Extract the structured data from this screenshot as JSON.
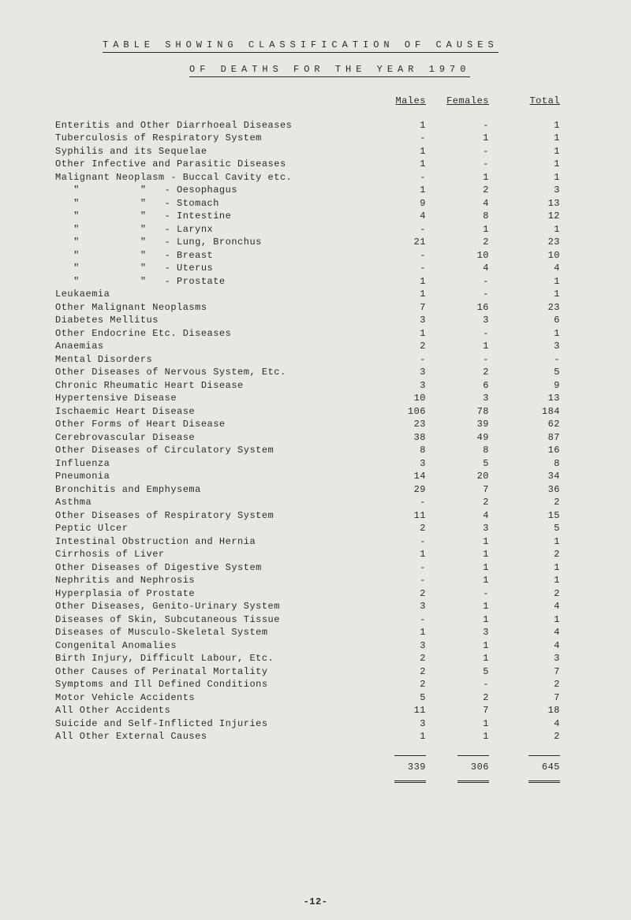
{
  "title1": "TABLE SHOWING CLASSIFICATION OF CAUSES",
  "title2": "OF DEATHS FOR THE YEAR 1970",
  "headers": {
    "c1": "Males",
    "c2": "Females",
    "c3": "Total"
  },
  "rows": [
    {
      "label": "Enteritis and Other Diarrhoeal Diseases",
      "m": "1",
      "f": "-",
      "t": "1"
    },
    {
      "label": "Tuberculosis of Respiratory System",
      "m": "-",
      "f": "1",
      "t": "1"
    },
    {
      "label": "Syphilis and its Sequelae",
      "m": "1",
      "f": "-",
      "t": "1"
    },
    {
      "label": "Other Infective and Parasitic Diseases",
      "m": "1",
      "f": "-",
      "t": "1"
    },
    {
      "label": "Malignant Neoplasm - Buccal Cavity etc.",
      "m": "-",
      "f": "1",
      "t": "1"
    },
    {
      "label": "   \"          \"   - Oesophagus",
      "m": "1",
      "f": "2",
      "t": "3"
    },
    {
      "label": "   \"          \"   - Stomach",
      "m": "9",
      "f": "4",
      "t": "13"
    },
    {
      "label": "   \"          \"   - Intestine",
      "m": "4",
      "f": "8",
      "t": "12"
    },
    {
      "label": "   \"          \"   - Larynx",
      "m": "-",
      "f": "1",
      "t": "1"
    },
    {
      "label": "   \"          \"   - Lung, Bronchus",
      "m": "21",
      "f": "2",
      "t": "23"
    },
    {
      "label": "   \"          \"   - Breast",
      "m": "-",
      "f": "10",
      "t": "10"
    },
    {
      "label": "   \"          \"   - Uterus",
      "m": "-",
      "f": "4",
      "t": "4"
    },
    {
      "label": "   \"          \"   - Prostate",
      "m": "1",
      "f": "-",
      "t": "1"
    },
    {
      "label": "Leukaemia",
      "m": "1",
      "f": "-",
      "t": "1"
    },
    {
      "label": "Other Malignant Neoplasms",
      "m": "7",
      "f": "16",
      "t": "23"
    },
    {
      "label": "Diabetes Mellitus",
      "m": "3",
      "f": "3",
      "t": "6"
    },
    {
      "label": "Other Endocrine Etc. Diseases",
      "m": "1",
      "f": "-",
      "t": "1"
    },
    {
      "label": "Anaemias",
      "m": "2",
      "f": "1",
      "t": "3"
    },
    {
      "label": "Mental Disorders",
      "m": "-",
      "f": "-",
      "t": "-"
    },
    {
      "label": "Other Diseases of Nervous System, Etc.",
      "m": "3",
      "f": "2",
      "t": "5"
    },
    {
      "label": "Chronic Rheumatic Heart Disease",
      "m": "3",
      "f": "6",
      "t": "9"
    },
    {
      "label": "Hypertensive Disease",
      "m": "10",
      "f": "3",
      "t": "13"
    },
    {
      "label": "Ischaemic Heart Disease",
      "m": "106",
      "f": "78",
      "t": "184"
    },
    {
      "label": "Other Forms of Heart Disease",
      "m": "23",
      "f": "39",
      "t": "62"
    },
    {
      "label": "Cerebrovascular Disease",
      "m": "38",
      "f": "49",
      "t": "87"
    },
    {
      "label": "Other Diseases of Circulatory System",
      "m": "8",
      "f": "8",
      "t": "16"
    },
    {
      "label": "Influenza",
      "m": "3",
      "f": "5",
      "t": "8"
    },
    {
      "label": "Pneumonia",
      "m": "14",
      "f": "20",
      "t": "34"
    },
    {
      "label": "Bronchitis and Emphysema",
      "m": "29",
      "f": "7",
      "t": "36"
    },
    {
      "label": "Asthma",
      "m": "-",
      "f": "2",
      "t": "2"
    },
    {
      "label": "Other Diseases of Respiratory System",
      "m": "11",
      "f": "4",
      "t": "15"
    },
    {
      "label": "Peptic Ulcer",
      "m": "2",
      "f": "3",
      "t": "5"
    },
    {
      "label": "Intestinal Obstruction and Hernia",
      "m": "-",
      "f": "1",
      "t": "1"
    },
    {
      "label": "Cirrhosis of Liver",
      "m": "1",
      "f": "1",
      "t": "2"
    },
    {
      "label": "Other Diseases of Digestive System",
      "m": "-",
      "f": "1",
      "t": "1"
    },
    {
      "label": "Nephritis and Nephrosis",
      "m": "-",
      "f": "1",
      "t": "1"
    },
    {
      "label": "Hyperplasia of Prostate",
      "m": "2",
      "f": "-",
      "t": "2"
    },
    {
      "label": "Other Diseases, Genito-Urinary System",
      "m": "3",
      "f": "1",
      "t": "4"
    },
    {
      "label": "Diseases of Skin, Subcutaneous Tissue",
      "m": "-",
      "f": "1",
      "t": "1"
    },
    {
      "label": "Diseases of Musculo-Skeletal System",
      "m": "1",
      "f": "3",
      "t": "4"
    },
    {
      "label": "Congenital Anomalies",
      "m": "3",
      "f": "1",
      "t": "4"
    },
    {
      "label": "Birth Injury, Difficult Labour, Etc.",
      "m": "2",
      "f": "1",
      "t": "3"
    },
    {
      "label": "Other Causes of Perinatal Mortality",
      "m": "2",
      "f": "5",
      "t": "7"
    },
    {
      "label": "Symptoms and Ill Defined Conditions",
      "m": "2",
      "f": "-",
      "t": "2"
    },
    {
      "label": "Motor Vehicle Accidents",
      "m": "5",
      "f": "2",
      "t": "7"
    },
    {
      "label": "All Other Accidents",
      "m": "11",
      "f": "7",
      "t": "18"
    },
    {
      "label": "Suicide and Self-Inflicted Injuries",
      "m": "3",
      "f": "1",
      "t": "4"
    },
    {
      "label": "All Other External Causes",
      "m": "1",
      "f": "1",
      "t": "2"
    }
  ],
  "totals": {
    "m": "339",
    "f": "306",
    "t": "645"
  },
  "pagenum": "-12-"
}
